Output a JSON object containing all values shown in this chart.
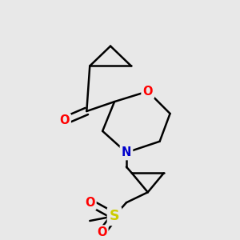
{
  "bg_color": "#e8e8e8",
  "bond_color": "#000000",
  "O_color": "#ff0000",
  "N_color": "#0000cc",
  "S_color": "#cccc00",
  "lw": 1.8,
  "fs": 10.5,
  "xlim": [
    0,
    300
  ],
  "ylim": [
    0,
    300
  ]
}
